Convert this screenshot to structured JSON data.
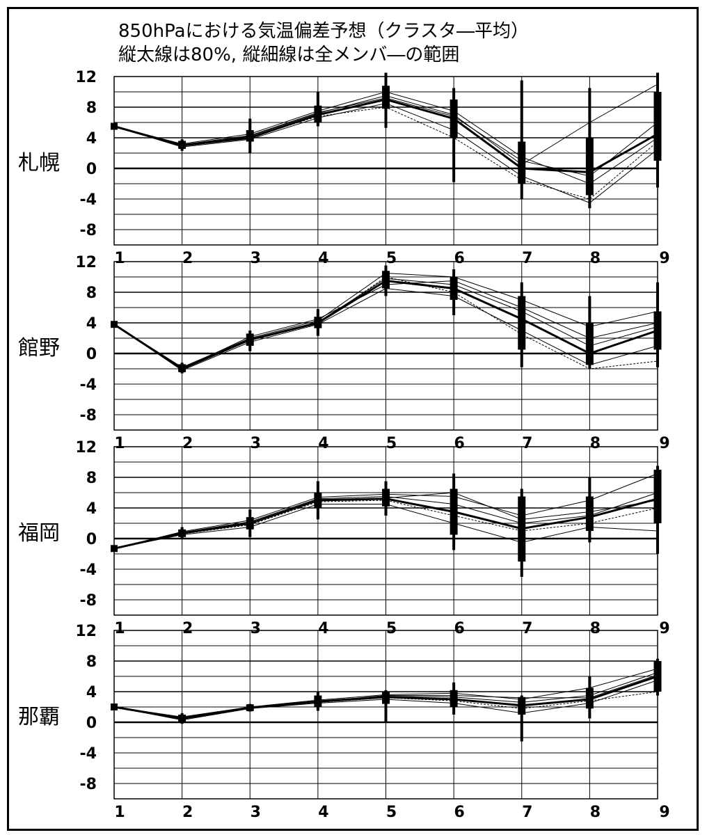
{
  "title_lines": [
    "850hPaにおける気温偏差予想（クラスタ―平均）",
    "縦太線は80%, 縦細線は全メンバ―の範囲"
  ],
  "chart_data": [
    {
      "type": "line",
      "station": "札幌",
      "x": [
        1,
        2,
        3,
        4,
        5,
        6,
        7,
        8,
        9
      ],
      "x_tick_labels": [
        "1",
        "2",
        "3",
        "4",
        "5",
        "6",
        "7",
        "8",
        "9"
      ],
      "y_tick_labels": [
        "12",
        "8",
        "4",
        "0",
        "-4",
        "-8"
      ],
      "ylim": [
        -10,
        12
      ],
      "mean": [
        5.5,
        3.0,
        4.0,
        7.0,
        9.0,
        6.5,
        0.0,
        -0.5,
        4.5
      ],
      "members": [
        [
          5.5,
          3.2,
          4.5,
          7.5,
          10.0,
          7.5,
          1.5,
          -2.0,
          4.0
        ],
        [
          5.5,
          2.8,
          3.8,
          6.6,
          8.5,
          5.0,
          -1.0,
          -4.5,
          2.5
        ],
        [
          5.5,
          3.0,
          4.2,
          7.2,
          9.5,
          7.0,
          0.5,
          6.0,
          11.0
        ],
        [
          5.5,
          2.9,
          4.0,
          6.8,
          8.0,
          4.0,
          -1.5,
          -4.0,
          3.5
        ],
        [
          5.5,
          3.1,
          4.3,
          7.3,
          9.2,
          6.8,
          1.0,
          -1.0,
          6.0
        ]
      ],
      "range_80": [
        [
          5.5,
          5.5
        ],
        [
          2.6,
          3.6
        ],
        [
          3.5,
          5.0
        ],
        [
          6.0,
          8.2
        ],
        [
          7.8,
          10.8
        ],
        [
          4.0,
          9.0
        ],
        [
          -2.0,
          3.5
        ],
        [
          -3.5,
          4.0
        ],
        [
          1.0,
          10.0
        ]
      ],
      "range_all": [
        [
          5.5,
          5.5
        ],
        [
          2.3,
          3.8
        ],
        [
          2.0,
          6.5
        ],
        [
          5.5,
          10.0
        ],
        [
          5.3,
          12.5
        ],
        [
          -1.8,
          10.5
        ],
        [
          -4.0,
          11.5
        ],
        [
          -5.2,
          10.5
        ],
        [
          -2.5,
          12.5
        ]
      ],
      "grid": true
    },
    {
      "type": "line",
      "station": "館野",
      "x": [
        1,
        2,
        3,
        4,
        5,
        6,
        7,
        8,
        9
      ],
      "x_tick_labels": [
        "1",
        "2",
        "3",
        "4",
        "5",
        "6",
        "7",
        "8",
        "9"
      ],
      "y_tick_labels": [
        "12",
        "8",
        "4",
        "0",
        "-4",
        "-8"
      ],
      "ylim": [
        -10,
        12
      ],
      "mean": [
        3.8,
        -2.0,
        1.8,
        4.0,
        9.5,
        8.5,
        4.5,
        0.0,
        3.0
      ],
      "members": [
        [
          3.8,
          -1.8,
          2.0,
          4.3,
          10.5,
          10.0,
          7.0,
          3.5,
          5.5
        ],
        [
          3.8,
          -2.2,
          1.5,
          3.8,
          8.5,
          7.5,
          3.0,
          -1.5,
          1.0
        ],
        [
          3.8,
          -1.9,
          1.9,
          4.1,
          9.8,
          9.0,
          5.5,
          1.0,
          3.5
        ],
        [
          3.8,
          -2.1,
          1.7,
          3.9,
          10.0,
          8.0,
          2.5,
          -2.0,
          -1.0
        ],
        [
          3.8,
          -2.0,
          2.2,
          4.5,
          9.0,
          9.5,
          6.0,
          2.0,
          4.0
        ]
      ],
      "range_80": [
        [
          3.8,
          3.8
        ],
        [
          -2.4,
          -1.4
        ],
        [
          1.0,
          2.6
        ],
        [
          3.3,
          4.8
        ],
        [
          8.5,
          10.8
        ],
        [
          7.0,
          10.0
        ],
        [
          0.5,
          7.5
        ],
        [
          -1.5,
          4.0
        ],
        [
          0.5,
          5.5
        ]
      ],
      "range_all": [
        [
          3.8,
          3.8
        ],
        [
          -2.6,
          -1.2
        ],
        [
          0.3,
          3.0
        ],
        [
          2.3,
          5.8
        ],
        [
          7.5,
          11.5
        ],
        [
          5.0,
          11.0
        ],
        [
          -1.8,
          9.3
        ],
        [
          -2.0,
          7.5
        ],
        [
          -1.8,
          9.3
        ]
      ],
      "grid": true
    },
    {
      "type": "line",
      "station": "福岡",
      "x": [
        1,
        2,
        3,
        4,
        5,
        6,
        7,
        8,
        9
      ],
      "x_tick_labels": [
        "1",
        "2",
        "3",
        "4",
        "5",
        "6",
        "7",
        "8",
        "9"
      ],
      "y_tick_labels": [
        "12",
        "8",
        "4",
        "0",
        "-4",
        "-8"
      ],
      "ylim": [
        -10,
        12
      ],
      "mean": [
        -1.3,
        0.7,
        2.0,
        5.0,
        5.2,
        3.5,
        1.3,
        2.8,
        5.2
      ],
      "members": [
        [
          -1.3,
          0.9,
          2.4,
          5.4,
          5.8,
          5.5,
          3.0,
          5.0,
          8.5
        ],
        [
          -1.3,
          0.5,
          1.5,
          4.5,
          4.5,
          2.0,
          -0.5,
          1.5,
          1.0
        ],
        [
          -1.3,
          0.8,
          2.2,
          5.2,
          5.5,
          4.5,
          2.0,
          3.0,
          6.0
        ],
        [
          -1.3,
          0.6,
          1.8,
          4.8,
          5.0,
          3.0,
          1.0,
          2.0,
          4.0
        ],
        [
          -1.3,
          0.7,
          2.0,
          5.1,
          5.3,
          6.0,
          2.5,
          3.5,
          5.0
        ]
      ],
      "range_80": [
        [
          -1.3,
          -1.3
        ],
        [
          0.2,
          1.2
        ],
        [
          1.2,
          2.8
        ],
        [
          4.0,
          6.0
        ],
        [
          4.2,
          6.5
        ],
        [
          0.5,
          6.5
        ],
        [
          -3.0,
          5.5
        ],
        [
          1.0,
          5.5
        ],
        [
          2.0,
          9.0
        ]
      ],
      "range_all": [
        [
          -1.3,
          -1.3
        ],
        [
          0.0,
          1.5
        ],
        [
          0.2,
          3.8
        ],
        [
          2.5,
          7.5
        ],
        [
          3.0,
          7.5
        ],
        [
          -1.5,
          8.5
        ],
        [
          -5.0,
          6.5
        ],
        [
          -0.5,
          8.0
        ],
        [
          -2.0,
          9.5
        ]
      ],
      "grid": true
    },
    {
      "type": "line",
      "station": "那覇",
      "x": [
        1,
        2,
        3,
        4,
        5,
        6,
        7,
        8,
        9
      ],
      "x_tick_labels": [
        "1",
        "2",
        "3",
        "4",
        "5",
        "6",
        "7",
        "8",
        "9"
      ],
      "y_tick_labels": [
        "12",
        "8",
        "4",
        "0",
        "-4",
        "-8"
      ],
      "ylim": [
        -10,
        12
      ],
      "mean": [
        2.0,
        0.5,
        1.9,
        2.7,
        3.3,
        3.0,
        2.2,
        3.0,
        6.0
      ],
      "members": [
        [
          2.0,
          0.7,
          2.0,
          2.9,
          3.6,
          3.8,
          3.0,
          4.5,
          7.0
        ],
        [
          2.0,
          0.3,
          1.8,
          2.5,
          3.0,
          2.5,
          1.2,
          2.5,
          5.5
        ],
        [
          2.0,
          0.5,
          1.9,
          2.8,
          3.4,
          3.3,
          2.6,
          3.5,
          6.5
        ],
        [
          2.0,
          0.4,
          1.9,
          2.6,
          3.2,
          2.8,
          1.8,
          2.8,
          4.0
        ],
        [
          2.0,
          0.6,
          2.0,
          2.7,
          3.5,
          3.5,
          3.2,
          3.2,
          6.2
        ]
      ],
      "range_80": [
        [
          2.0,
          2.0
        ],
        [
          0.0,
          1.0
        ],
        [
          1.5,
          2.3
        ],
        [
          2.0,
          3.5
        ],
        [
          2.4,
          4.0
        ],
        [
          2.0,
          4.2
        ],
        [
          1.0,
          3.3
        ],
        [
          1.8,
          4.5
        ],
        [
          4.0,
          8.0
        ]
      ],
      "range_all": [
        [
          2.0,
          2.0
        ],
        [
          -0.2,
          1.2
        ],
        [
          1.4,
          2.4
        ],
        [
          1.5,
          4.0
        ],
        [
          0.0,
          4.2
        ],
        [
          1.0,
          5.2
        ],
        [
          -2.5,
          3.5
        ],
        [
          0.5,
          6.0
        ],
        [
          3.5,
          8.3
        ]
      ],
      "grid": true
    }
  ]
}
